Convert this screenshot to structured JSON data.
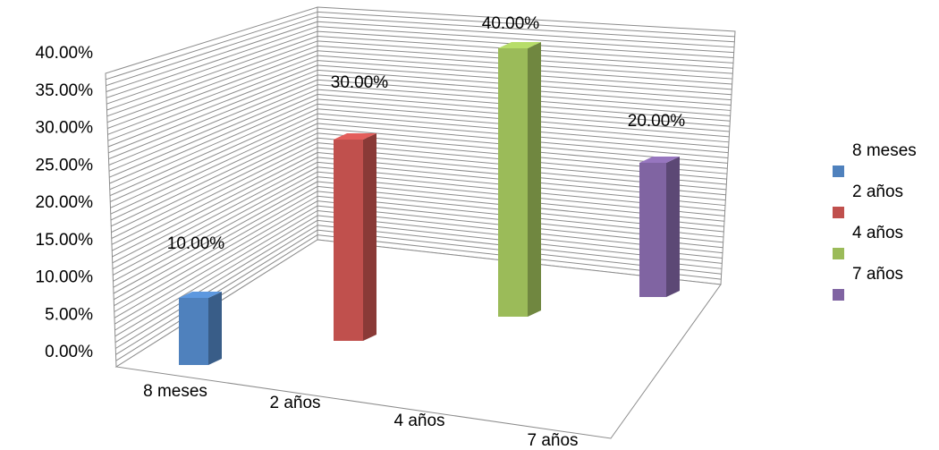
{
  "chart_data": {
    "type": "bar",
    "categories": [
      "8 meses",
      "2 años",
      "4 años",
      "7 años"
    ],
    "values": [
      10,
      30,
      40,
      20
    ],
    "value_labels": [
      "10.00%",
      "30.00%",
      "40.00%",
      "20.00%"
    ],
    "y_ticks": [
      "0.00%",
      "5.00%",
      "10.00%",
      "15.00%",
      "20.00%",
      "25.00%",
      "30.00%",
      "35.00%",
      "40.00%"
    ],
    "ylim": [
      0,
      40
    ],
    "grid": true,
    "legend": {
      "position": "right",
      "entries": [
        "8 meses",
        "2 años",
        "4 años",
        "7 años"
      ]
    },
    "colors": [
      "#4f81bd",
      "#c0504d",
      "#9bbb59",
      "#8064a2"
    ]
  }
}
